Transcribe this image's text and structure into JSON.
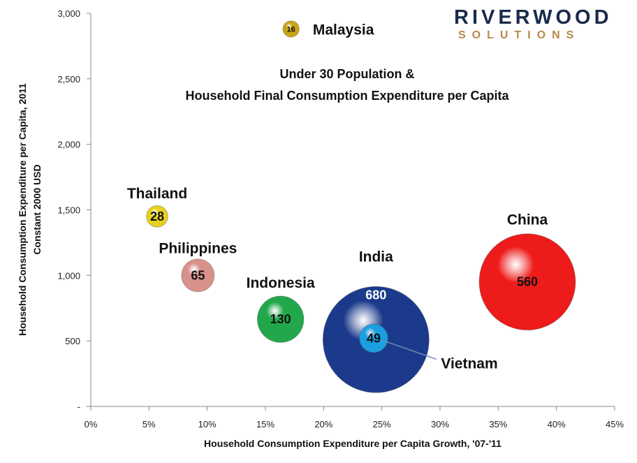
{
  "logo": {
    "top": "RIVERWOOD",
    "bottom": "SOLUTIONS"
  },
  "chart_data": {
    "type": "bubble",
    "title_lines": [
      "Under 30 Population &",
      "Household Final Consumption Expenditure per Capita"
    ],
    "xlabel": "Household  Consumption Expenditure  per Capita Growth, '07-'11",
    "ylabel_lines": [
      "Household Consumption Expenditure per Capita, 2011",
      "Constant  2000 USD"
    ],
    "xlim": [
      0,
      0.45
    ],
    "ylim": [
      0,
      3000
    ],
    "x_ticks": [
      0,
      0.05,
      0.1,
      0.15,
      0.2,
      0.25,
      0.3,
      0.35,
      0.4,
      0.45
    ],
    "x_tick_labels": [
      "0%",
      "5%",
      "10%",
      "15%",
      "20%",
      "25%",
      "30%",
      "35%",
      "40%",
      "45%"
    ],
    "y_ticks": [
      0,
      500,
      1000,
      1500,
      2000,
      2500,
      3000
    ],
    "y_tick_labels": [
      "-",
      "500",
      "1,000",
      "1,500",
      "2,000",
      "2,500",
      "3,000"
    ],
    "grid": false,
    "bubble_size_meaning": "Under 30 population (millions)",
    "points": [
      {
        "name": "Malaysia",
        "x": 0.172,
        "y": 2880,
        "size": 16,
        "label": "16",
        "color": "#c9a416"
      },
      {
        "name": "Thailand",
        "x": 0.057,
        "y": 1450,
        "size": 28,
        "label": "28",
        "color": "#e6d21e"
      },
      {
        "name": "Philippines",
        "x": 0.092,
        "y": 1000,
        "size": 65,
        "label": "65",
        "color": "#d9918b"
      },
      {
        "name": "Indonesia",
        "x": 0.163,
        "y": 665,
        "size": 130,
        "label": "130",
        "color": "#22a84a"
      },
      {
        "name": "India",
        "x": 0.245,
        "y": 510,
        "size": 680,
        "label": "680",
        "color": "#1c3a8c"
      },
      {
        "name": "Vietnam",
        "x": 0.243,
        "y": 520,
        "size": 49,
        "label": "49",
        "color": "#1aa0e0"
      },
      {
        "name": "China",
        "x": 0.375,
        "y": 950,
        "size": 560,
        "label": "560",
        "color": "#ee1b1b"
      }
    ]
  }
}
